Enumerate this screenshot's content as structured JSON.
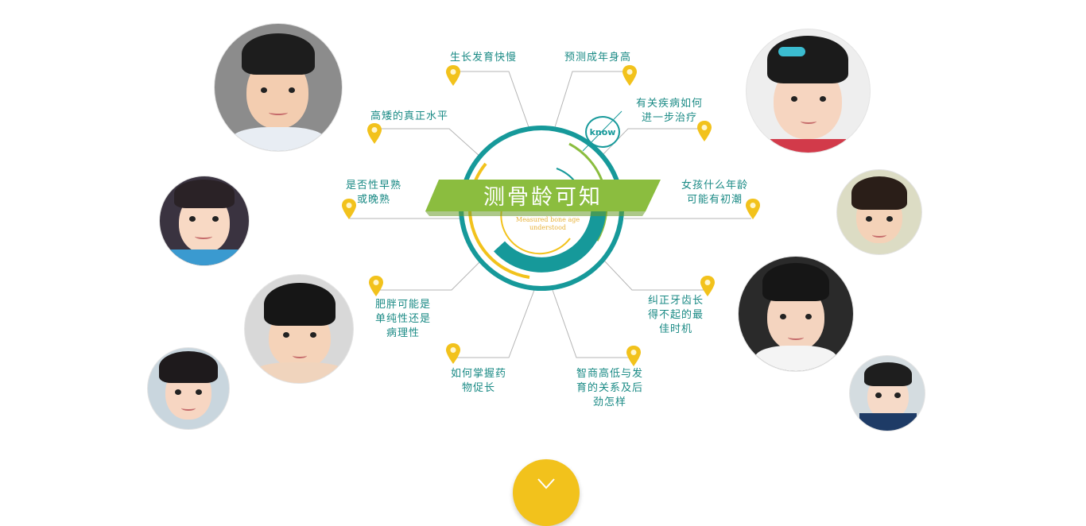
{
  "center": {
    "title": "测骨龄可知",
    "subtitle": "Measured bone age understood",
    "badge": "know"
  },
  "topics": [
    "生长发育快慢",
    "预测成年身高",
    "高矮的真正水平",
    "有关疾病如何\n进一步治疗",
    "是否性早熟\n或晚熟",
    "女孩什么年龄\n可能有初潮",
    "肥胖可能是\n单纯性还是\n病理性",
    "纠正牙齿长\n得不起的最\n佳时机",
    "如何掌握药\n物促长",
    "智商高低与发\n育的关系及后\n劲怎样"
  ],
  "colors": {
    "teal": "#16999a",
    "green": "#8bbd3f",
    "yellow": "#f2c21c",
    "line": "#b5b5b5",
    "label": "#1a8a85"
  },
  "icons": {
    "pin": "map-pin-icon",
    "scroll": "chevron-down-icon"
  }
}
